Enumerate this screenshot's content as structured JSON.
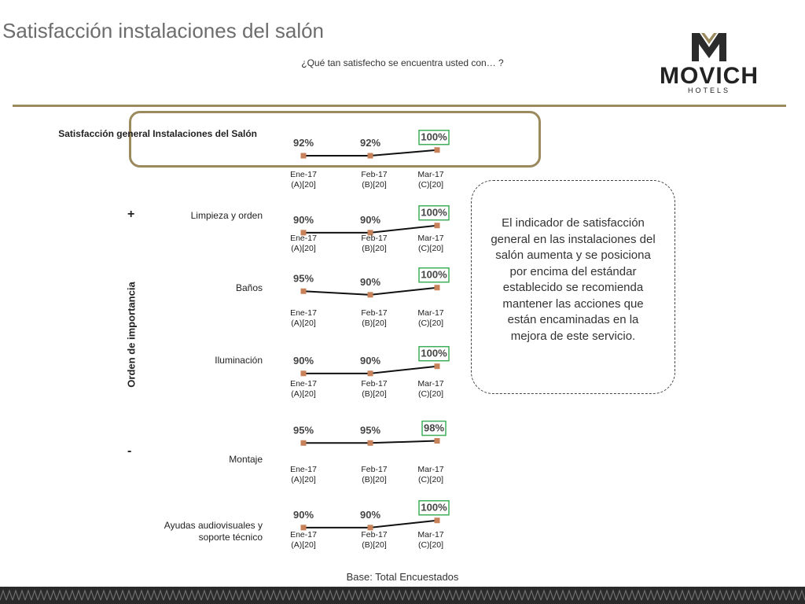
{
  "header": {
    "title": "Satisfacción instalaciones del salón",
    "subtitle": "¿Qué tan satisfecho se encuentra usted con… ?",
    "logo_text": "MOVICH",
    "logo_sub": "HOTELS"
  },
  "axis_title": "Orden de importancia",
  "more_sign": "+",
  "less_sign": "-",
  "note": "El indicador de satisfacción general en las instalaciones del salón aumenta y se posiciona por encima del estándar establecido se recomienda mantener las acciones que están encaminadas en la mejora de este servicio.",
  "base": "Base: Total Encuestados",
  "colors": {
    "accent": "#9a8a5e",
    "marker": "#c8825a",
    "highlight_box": "#3fae5a"
  },
  "chart_data": {
    "type": "line",
    "x": [
      "Ene-17",
      "Feb-17",
      "Mar-17"
    ],
    "x_sub": [
      "(A)[20]",
      "(B)[20]",
      "(C)[20]"
    ],
    "ylim": [
      0,
      100
    ],
    "series": [
      {
        "name": "Satisfacción general Instalaciones del Salón",
        "values": [
          92,
          92,
          100
        ],
        "labels": [
          "92%",
          "92%",
          "100%"
        ]
      },
      {
        "name": "Limpieza y orden",
        "values": [
          90,
          90,
          100
        ],
        "labels": [
          "90%",
          "90%",
          "100%"
        ]
      },
      {
        "name": "Baños",
        "values": [
          95,
          90,
          100
        ],
        "labels": [
          "95%",
          "90%",
          "100%"
        ]
      },
      {
        "name": "Iluminación",
        "values": [
          90,
          90,
          100
        ],
        "labels": [
          "90%",
          "90%",
          "100%"
        ]
      },
      {
        "name": "Montaje",
        "values": [
          95,
          95,
          98
        ],
        "labels": [
          "95%",
          "95%",
          "98%"
        ]
      },
      {
        "name": "Ayudas audiovisuales y soporte técnico",
        "values": [
          90,
          90,
          100
        ],
        "labels": [
          "90%",
          "90%",
          "100%"
        ]
      }
    ]
  }
}
